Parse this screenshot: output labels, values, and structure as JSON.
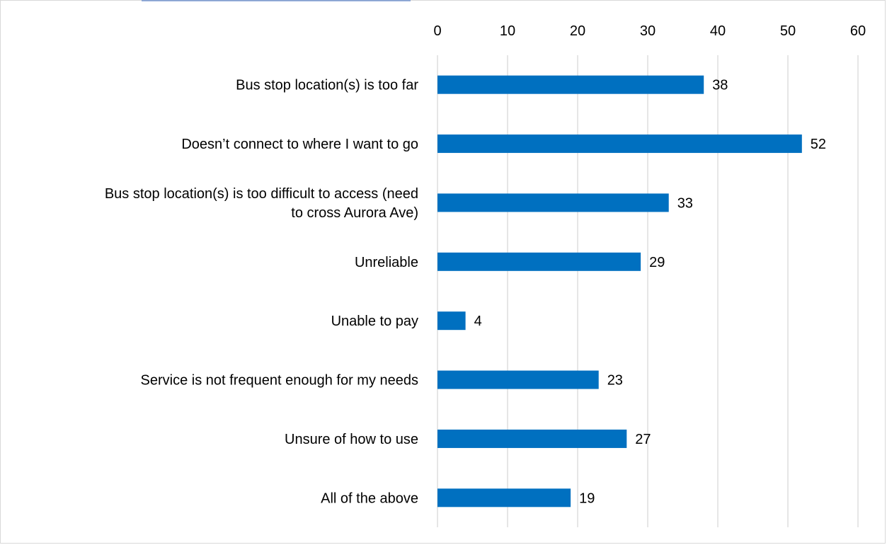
{
  "chart_data": {
    "type": "bar",
    "orientation": "horizontal",
    "title": "",
    "xlabel": "",
    "ylabel": "",
    "categories": [
      "Bus stop location(s) is too far",
      "Doesn’t connect to where I want to go",
      "Bus stop location(s) is too difficult to access (need to cross Aurora Ave)",
      "Unreliable",
      "Unable to pay",
      "Service is not frequent enough for my needs",
      "Unsure of how to use",
      "All of the above"
    ],
    "category_lines": [
      [
        "Bus stop location(s) is too far"
      ],
      [
        "Doesn’t connect to where I want to go"
      ],
      [
        "Bus stop location(s) is too difficult to access (need",
        "to cross Aurora Ave)"
      ],
      [
        "Unreliable"
      ],
      [
        "Unable to pay"
      ],
      [
        "Service is not frequent enough for my needs"
      ],
      [
        "Unsure of how to use"
      ],
      [
        "All of the above"
      ]
    ],
    "values": [
      38,
      52,
      33,
      29,
      4,
      23,
      27,
      19
    ],
    "xlim": [
      0,
      60
    ],
    "ticks": [
      0,
      10,
      20,
      30,
      40,
      50,
      60
    ],
    "axis_position": "top",
    "grid": true,
    "data_labels": true,
    "legend": "none",
    "bar_color": "#0070c0"
  }
}
